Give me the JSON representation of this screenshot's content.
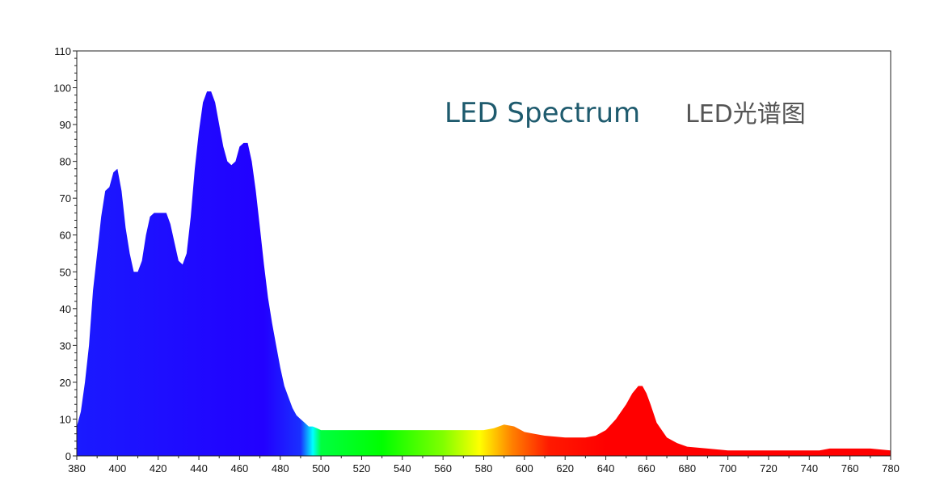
{
  "chart_data": {
    "type": "area",
    "title": "LED Spectrum",
    "subtitle": "LED光谱图",
    "xlabel": "",
    "ylabel": "",
    "xlim": [
      380,
      780
    ],
    "ylim": [
      0,
      110
    ],
    "x_ticks": [
      380,
      400,
      420,
      440,
      460,
      480,
      500,
      520,
      540,
      560,
      580,
      600,
      620,
      640,
      660,
      680,
      700,
      720,
      740,
      760,
      780
    ],
    "y_ticks": [
      0,
      10,
      20,
      30,
      40,
      50,
      60,
      70,
      80,
      90,
      100,
      110
    ],
    "grid": false,
    "series": [
      {
        "name": "LED spectrum",
        "x": [
          380,
          382,
          384,
          386,
          388,
          390,
          392,
          394,
          396,
          398,
          400,
          402,
          404,
          406,
          408,
          410,
          412,
          414,
          416,
          418,
          420,
          422,
          424,
          426,
          428,
          430,
          432,
          434,
          436,
          438,
          440,
          442,
          444,
          446,
          448,
          450,
          452,
          454,
          456,
          458,
          460,
          462,
          464,
          466,
          468,
          470,
          472,
          474,
          476,
          478,
          480,
          482,
          484,
          486,
          488,
          490,
          492,
          494,
          496,
          498,
          500,
          505,
          510,
          520,
          530,
          540,
          550,
          560,
          570,
          575,
          580,
          585,
          590,
          595,
          600,
          605,
          610,
          620,
          630,
          635,
          640,
          645,
          650,
          653,
          656,
          658,
          660,
          662,
          665,
          670,
          675,
          680,
          690,
          700,
          720,
          740,
          745,
          750,
          760,
          770,
          780
        ],
        "y": [
          8,
          12,
          20,
          30,
          45,
          55,
          65,
          72,
          73,
          77,
          78,
          72,
          62,
          55,
          50,
          50,
          53,
          60,
          65,
          66,
          66,
          66,
          66,
          63,
          58,
          53,
          52,
          55,
          65,
          78,
          88,
          96,
          99,
          99,
          96,
          90,
          84,
          80,
          79,
          80,
          84,
          85,
          85,
          80,
          72,
          62,
          52,
          43,
          36,
          30,
          24,
          19,
          16,
          13,
          11,
          10,
          9,
          8,
          8,
          7.5,
          7,
          7,
          7,
          7,
          7,
          7,
          7,
          7,
          7,
          7,
          7,
          7.5,
          8.5,
          8,
          6.5,
          6,
          5.5,
          5,
          5,
          5.5,
          7,
          10,
          14,
          17,
          19,
          19,
          17,
          14,
          9,
          5,
          3.5,
          2.5,
          2,
          1.5,
          1.5,
          1.5,
          1.5,
          2,
          2,
          2,
          1.5
        ]
      }
    ]
  }
}
